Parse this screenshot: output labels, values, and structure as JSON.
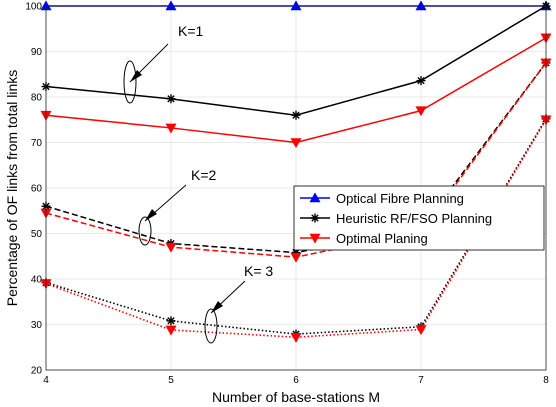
{
  "chart_data": {
    "type": "line",
    "xlabel": "Number of base-stations M",
    "ylabel": "Percentage of OF links from total links",
    "xlim": [
      4,
      8
    ],
    "ylim": [
      20,
      100
    ],
    "x": [
      4,
      5,
      6,
      7,
      8
    ],
    "xticks": [
      "4",
      "5",
      "6",
      "7",
      "8"
    ],
    "yticks": [
      "20",
      "30",
      "40",
      "50",
      "60",
      "70",
      "80",
      "90",
      "100"
    ],
    "grid": true,
    "legend": {
      "position": "right",
      "entries": [
        "Optical Fibre Planning",
        "Heuristic RF/FSO Planning",
        "Optimal Planing"
      ]
    },
    "colors": {
      "fibre": "#0000ff",
      "heuristic": "#000000",
      "optimal": "#ff0000",
      "grid": "#e5e5e5"
    },
    "series": [
      {
        "id": "fibre",
        "group": "Optical Fibre Planning",
        "values": [
          100,
          100,
          100,
          100,
          100
        ],
        "color": "#0000ff",
        "style": "solid",
        "marker": "triangle-up"
      },
      {
        "id": "h1",
        "group": "Heuristic RF/FSO Planning",
        "k": "K=1",
        "values": [
          82.3,
          79.6,
          76.0,
          83.6,
          100
        ],
        "color": "#000000",
        "style": "solid",
        "marker": "star"
      },
      {
        "id": "o1",
        "group": "Optimal Planing",
        "k": "K=1",
        "values": [
          76.0,
          73.2,
          70.0,
          77.0,
          93.0
        ],
        "color": "#ff0000",
        "style": "solid",
        "marker": "triangle-down"
      },
      {
        "id": "h2",
        "group": "Heuristic RF/FSO Planning",
        "k": "K=2",
        "values": [
          56.0,
          47.8,
          45.8,
          51.2,
          87.5
        ],
        "color": "#000000",
        "style": "dashed",
        "marker": "star"
      },
      {
        "id": "o2",
        "group": "Optimal Planing",
        "k": "K=2",
        "values": [
          54.5,
          47.0,
          44.8,
          50.5,
          87.5
        ],
        "color": "#ff0000",
        "style": "dashed",
        "marker": "triangle-down"
      },
      {
        "id": "h3",
        "group": "Heuristic RF/FSO Planning",
        "k": "K= 3",
        "values": [
          39.2,
          30.8,
          27.9,
          29.5,
          75.2
        ],
        "color": "#000000",
        "style": "dotted",
        "marker": "star"
      },
      {
        "id": "o3",
        "group": "Optimal Planing",
        "k": "K= 3",
        "values": [
          39.0,
          28.8,
          27.2,
          28.9,
          75.0
        ],
        "color": "#ff0000",
        "style": "dotted",
        "marker": "triangle-down"
      }
    ],
    "annotations": [
      {
        "text": "K=1"
      },
      {
        "text": "K=2"
      },
      {
        "text": "K= 3"
      }
    ]
  }
}
